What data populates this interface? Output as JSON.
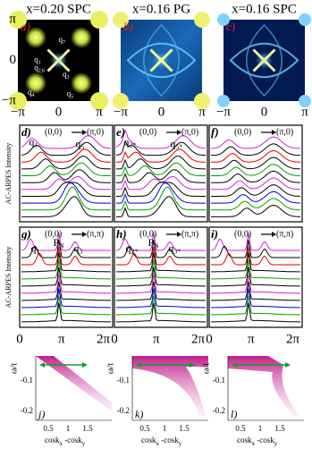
{
  "map_panels": [
    {
      "title": "x=0.20 SPC",
      "label": "a)",
      "yticks": [
        "π",
        "0",
        "−π"
      ],
      "xticks": [
        "−π",
        "0",
        "π"
      ],
      "annotations": [
        {
          "q": "q",
          "sub": "7"
        },
        {
          "q": "q",
          "sub": "1"
        },
        {
          "q": "q",
          "sub": "2,6"
        },
        {
          "q": "q",
          "sub": "3"
        },
        {
          "q": "q",
          "sub": "4"
        },
        {
          "q": "q",
          "sub": "5"
        }
      ]
    },
    {
      "title": "x=0.16 PG",
      "label": "b)",
      "xticks": [
        "−π",
        "0",
        "π"
      ]
    },
    {
      "title": "x=0.16 SPC",
      "label": "c)",
      "xticks": [
        "−π",
        "0",
        "π"
      ]
    }
  ],
  "edc_rows": [
    {
      "ylabel": "AC-ARPES Intensity",
      "panels": [
        {
          "label": "d)",
          "path": [
            "(0,0)",
            "(π,0)"
          ],
          "annotations": [
            {
              "q": "q",
              "sub": "1"
            },
            {
              "q": "q",
              "sub": "5"
            }
          ]
        },
        {
          "label": "e)",
          "path": [
            "(0,0)",
            "(π,0)"
          ],
          "annotations": [
            {
              "q": "q",
              "sub": "2*"
            },
            {
              "q": "q",
              "sub": "5*"
            }
          ]
        },
        {
          "label": "f)",
          "path": [
            "(0,0)",
            "(π,0)"
          ],
          "annotations": []
        }
      ]
    },
    {
      "ylabel": "AC-ARPES Intensity",
      "xticks": [
        "0",
        "π",
        "2π"
      ],
      "panels": [
        {
          "label": "g)",
          "path": [
            "(0,0)",
            "(π,π)"
          ],
          "annotations": [
            {
              "q": "q",
              "sub": "1"
            },
            {
              "q": "P",
              "sub": "N"
            },
            {
              "q": "q",
              "sub": "3"
            }
          ]
        },
        {
          "label": "h)",
          "path": [
            "(0,0)",
            "(π,π)"
          ],
          "annotations": [
            {
              "q": "q",
              "sub": "2*"
            },
            {
              "q": "P",
              "sub": "N"
            },
            {
              "q": "q",
              "sub": "3*"
            }
          ]
        },
        {
          "label": "i)",
          "path": [
            "(0,0)",
            "(π,π)"
          ],
          "annotations": []
        }
      ]
    }
  ],
  "dispersion_panels": {
    "ylabel": "ω/t",
    "yticks": [
      "-0.1",
      "-0.2"
    ],
    "xticks": [
      "0.5",
      "1",
      "1.5"
    ],
    "xlabel": [
      "cosk",
      "x",
      " -cosk",
      "y"
    ],
    "labels": [
      "j)",
      "k)",
      "l)"
    ]
  }
}
